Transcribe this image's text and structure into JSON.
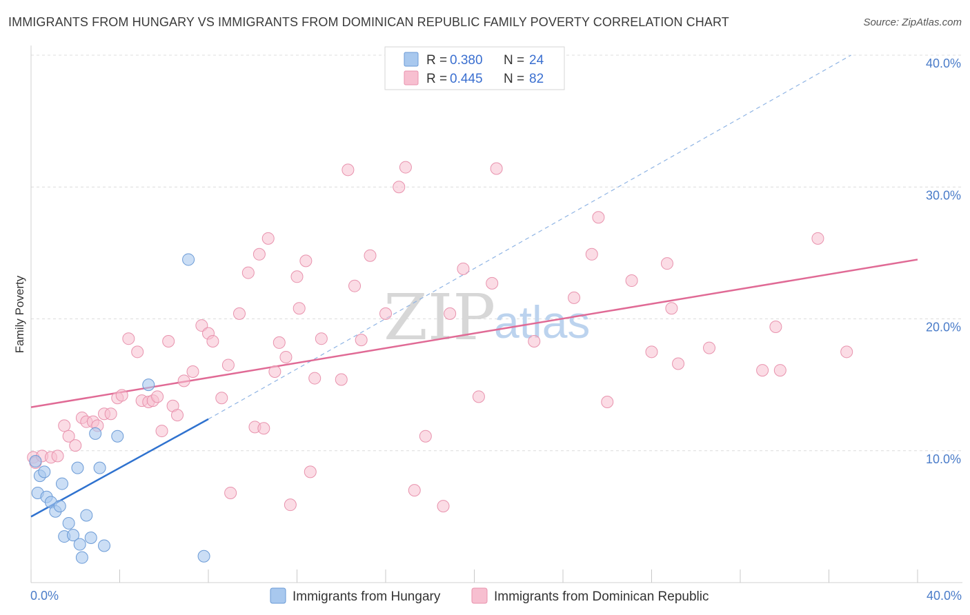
{
  "title": "IMMIGRANTS FROM HUNGARY VS IMMIGRANTS FROM DOMINICAN REPUBLIC FAMILY POVERTY CORRELATION CHART",
  "source": "Source: ZipAtlas.com",
  "watermark": {
    "zip": "ZIP",
    "atlas": "atlas"
  },
  "colors": {
    "hungary_fill": "#a8c8ee",
    "hungary_stroke": "#6a9ad6",
    "hungary_line": "#2f72cf",
    "dominican_fill": "#f7bfd0",
    "dominican_stroke": "#e892ad",
    "dominican_line": "#e06a95",
    "grid": "#dcdcdc",
    "axis_text": "#4a7cc9"
  },
  "legend": {
    "rows": [
      {
        "r_label": "R = ",
        "r_value": "0.380",
        "n_label": "N = ",
        "n_value": "24"
      },
      {
        "r_label": "R = ",
        "r_value": "0.445",
        "n_label": "N = ",
        "n_value": "82"
      }
    ]
  },
  "chart_data": {
    "type": "scatter",
    "title": "IMMIGRANTS FROM HUNGARY VS IMMIGRANTS FROM DOMINICAN REPUBLIC FAMILY POVERTY CORRELATION CHART",
    "ylabel": "Family Poverty",
    "xlabel": "",
    "xlim": [
      0,
      40
    ],
    "ylim": [
      0,
      40
    ],
    "x_tick_labels": [
      "0.0%",
      "40.0%"
    ],
    "y_ticks": [
      10,
      20,
      30,
      40
    ],
    "y_tick_labels": [
      "10.0%",
      "20.0%",
      "30.0%",
      "40.0%"
    ],
    "grid": true,
    "legend_position": "top-center",
    "series": [
      {
        "name": "Immigrants from Hungary",
        "r": 0.38,
        "n": 24,
        "trend": {
          "x1": 0,
          "y1": 5.0,
          "x2": 8.0,
          "y2": 12.4,
          "dashed_to_x": 37.0,
          "dashed_to_y": 40.0
        },
        "points": [
          [
            0.2,
            9.2
          ],
          [
            0.3,
            6.8
          ],
          [
            0.4,
            8.1
          ],
          [
            0.6,
            8.4
          ],
          [
            0.7,
            6.5
          ],
          [
            0.9,
            6.1
          ],
          [
            1.1,
            5.4
          ],
          [
            1.3,
            5.8
          ],
          [
            1.4,
            7.5
          ],
          [
            1.5,
            3.5
          ],
          [
            1.7,
            4.5
          ],
          [
            1.9,
            3.6
          ],
          [
            2.1,
            8.7
          ],
          [
            2.2,
            2.9
          ],
          [
            2.3,
            1.9
          ],
          [
            2.5,
            5.1
          ],
          [
            2.7,
            3.4
          ],
          [
            2.9,
            11.3
          ],
          [
            3.1,
            8.7
          ],
          [
            3.3,
            2.8
          ],
          [
            3.9,
            11.1
          ],
          [
            5.3,
            15.0
          ],
          [
            7.1,
            24.5
          ],
          [
            7.8,
            2.0
          ]
        ]
      },
      {
        "name": "Immigrants from Dominican Republic",
        "r": 0.445,
        "n": 82,
        "trend": {
          "x1": 0,
          "y1": 13.3,
          "x2": 40,
          "y2": 24.5
        },
        "points": [
          [
            0.1,
            9.5
          ],
          [
            0.2,
            9.1
          ],
          [
            0.5,
            9.6
          ],
          [
            0.9,
            9.5
          ],
          [
            1.2,
            9.6
          ],
          [
            1.5,
            11.9
          ],
          [
            1.7,
            11.1
          ],
          [
            2.0,
            10.4
          ],
          [
            2.3,
            12.5
          ],
          [
            2.5,
            12.2
          ],
          [
            2.8,
            12.2
          ],
          [
            3.0,
            11.9
          ],
          [
            3.3,
            12.8
          ],
          [
            3.6,
            12.8
          ],
          [
            3.9,
            14.0
          ],
          [
            4.1,
            14.2
          ],
          [
            4.4,
            18.5
          ],
          [
            4.8,
            17.5
          ],
          [
            5.0,
            13.8
          ],
          [
            5.3,
            13.7
          ],
          [
            5.5,
            13.8
          ],
          [
            5.7,
            14.1
          ],
          [
            5.9,
            11.5
          ],
          [
            6.2,
            18.3
          ],
          [
            6.4,
            13.4
          ],
          [
            6.6,
            12.7
          ],
          [
            6.9,
            15.3
          ],
          [
            7.3,
            16.0
          ],
          [
            7.7,
            19.5
          ],
          [
            8.0,
            18.9
          ],
          [
            8.2,
            18.3
          ],
          [
            8.6,
            14.0
          ],
          [
            8.9,
            16.5
          ],
          [
            9.0,
            6.8
          ],
          [
            9.4,
            20.4
          ],
          [
            9.8,
            23.5
          ],
          [
            10.1,
            11.8
          ],
          [
            10.3,
            24.9
          ],
          [
            10.5,
            11.7
          ],
          [
            10.7,
            26.1
          ],
          [
            11.0,
            16.0
          ],
          [
            11.2,
            18.2
          ],
          [
            11.5,
            17.1
          ],
          [
            11.7,
            5.9
          ],
          [
            12.0,
            23.2
          ],
          [
            12.1,
            20.8
          ],
          [
            12.4,
            24.4
          ],
          [
            12.6,
            8.4
          ],
          [
            12.8,
            15.5
          ],
          [
            13.1,
            18.5
          ],
          [
            14.0,
            15.4
          ],
          [
            14.3,
            31.3
          ],
          [
            14.6,
            22.5
          ],
          [
            14.9,
            18.4
          ],
          [
            15.3,
            24.8
          ],
          [
            16.0,
            20.4
          ],
          [
            16.6,
            30.0
          ],
          [
            16.9,
            31.5
          ],
          [
            17.3,
            7.0
          ],
          [
            17.8,
            11.1
          ],
          [
            18.6,
            5.8
          ],
          [
            18.9,
            20.4
          ],
          [
            19.5,
            23.8
          ],
          [
            20.2,
            14.1
          ],
          [
            20.8,
            22.7
          ],
          [
            21.0,
            31.4
          ],
          [
            22.7,
            18.3
          ],
          [
            24.5,
            21.6
          ],
          [
            25.3,
            24.9
          ],
          [
            25.6,
            27.7
          ],
          [
            26.0,
            13.7
          ],
          [
            27.1,
            22.9
          ],
          [
            28.0,
            17.5
          ],
          [
            28.7,
            24.2
          ],
          [
            28.9,
            20.8
          ],
          [
            29.2,
            16.6
          ],
          [
            30.6,
            17.8
          ],
          [
            33.0,
            16.1
          ],
          [
            33.6,
            19.4
          ],
          [
            33.8,
            16.1
          ],
          [
            35.5,
            26.1
          ],
          [
            36.8,
            17.5
          ]
        ]
      }
    ]
  }
}
